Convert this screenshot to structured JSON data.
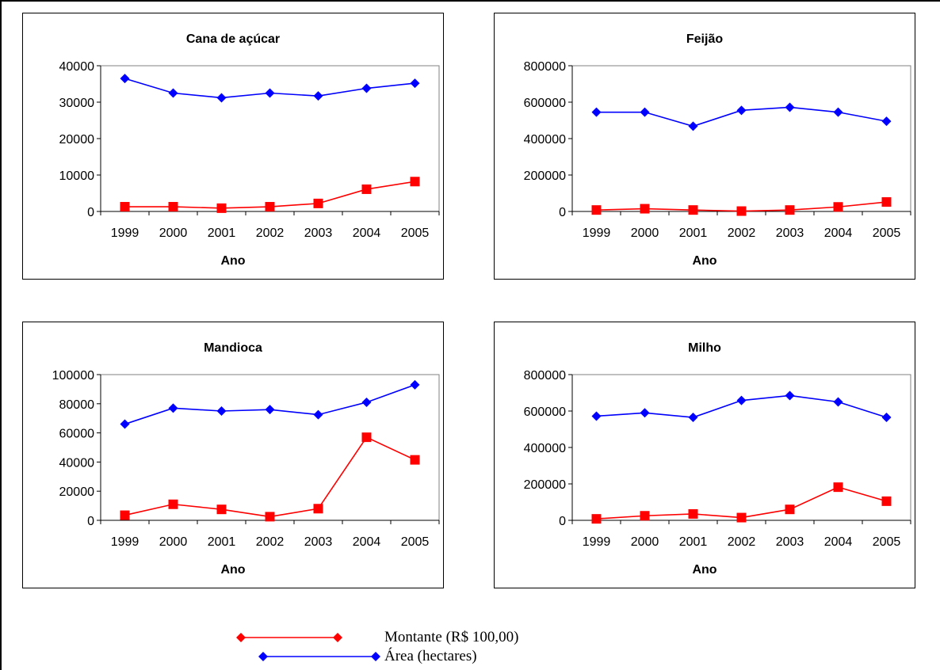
{
  "colors": {
    "montante": "#ff0000",
    "area": "#0000ff"
  },
  "legend": {
    "montante": {
      "label": "Montante (R$ 100,00)",
      "marker": "diamond"
    },
    "area": {
      "label": "Área (hectares)",
      "marker": "diamond"
    }
  },
  "chart_data": [
    {
      "type": "line",
      "title": "Cana de açúcar",
      "xlabel": "Ano",
      "ylabel": "",
      "x": [
        "1999",
        "2000",
        "2001",
        "2002",
        "2003",
        "2004",
        "2005"
      ],
      "ylim": [
        0,
        40000
      ],
      "yticks": [
        "0",
        "10000",
        "20000",
        "30000",
        "40000"
      ],
      "grid": false,
      "series": [
        {
          "key": "area",
          "marker": "diamond",
          "values": [
            36500,
            32500,
            31200,
            32500,
            31700,
            33800,
            35200
          ]
        },
        {
          "key": "montante",
          "marker": "square",
          "values": [
            1300,
            1300,
            900,
            1300,
            2200,
            6100,
            8200
          ]
        }
      ]
    },
    {
      "type": "line",
      "title": "Feijão",
      "xlabel": "Ano",
      "ylabel": "",
      "x": [
        "1999",
        "2000",
        "2001",
        "2002",
        "2003",
        "2004",
        "2005"
      ],
      "ylim": [
        0,
        800000
      ],
      "yticks": [
        "0",
        "200000",
        "400000",
        "600000",
        "800000"
      ],
      "grid": false,
      "series": [
        {
          "key": "area",
          "marker": "diamond",
          "values": [
            545000,
            545000,
            468000,
            555000,
            572000,
            545000,
            495000
          ]
        },
        {
          "key": "montante",
          "marker": "square",
          "values": [
            8000,
            15000,
            8000,
            2000,
            8000,
            25000,
            52000
          ]
        }
      ]
    },
    {
      "type": "line",
      "title": "Mandioca",
      "xlabel": "Ano",
      "ylabel": "",
      "x": [
        "1999",
        "2000",
        "2001",
        "2002",
        "2003",
        "2004",
        "2005"
      ],
      "ylim": [
        0,
        100000
      ],
      "yticks": [
        "0",
        "20000",
        "40000",
        "60000",
        "80000",
        "100000"
      ],
      "grid": false,
      "series": [
        {
          "key": "area",
          "marker": "diamond",
          "values": [
            66000,
            77000,
            75000,
            76000,
            72500,
            81000,
            93000
          ]
        },
        {
          "key": "montante",
          "marker": "square",
          "values": [
            3500,
            11000,
            7500,
            2500,
            8000,
            57000,
            41500
          ]
        }
      ]
    },
    {
      "type": "line",
      "title": "Milho",
      "xlabel": "Ano",
      "ylabel": "",
      "x": [
        "1999",
        "2000",
        "2001",
        "2002",
        "2003",
        "2004",
        "2005"
      ],
      "ylim": [
        0,
        800000
      ],
      "yticks": [
        "0",
        "200000",
        "400000",
        "600000",
        "800000"
      ],
      "grid": false,
      "series": [
        {
          "key": "area",
          "marker": "diamond",
          "values": [
            572000,
            590000,
            565000,
            658000,
            685000,
            650000,
            565000
          ]
        },
        {
          "key": "montante",
          "marker": "square",
          "values": [
            8000,
            25000,
            35000,
            15000,
            60000,
            182000,
            105000
          ]
        }
      ]
    }
  ]
}
